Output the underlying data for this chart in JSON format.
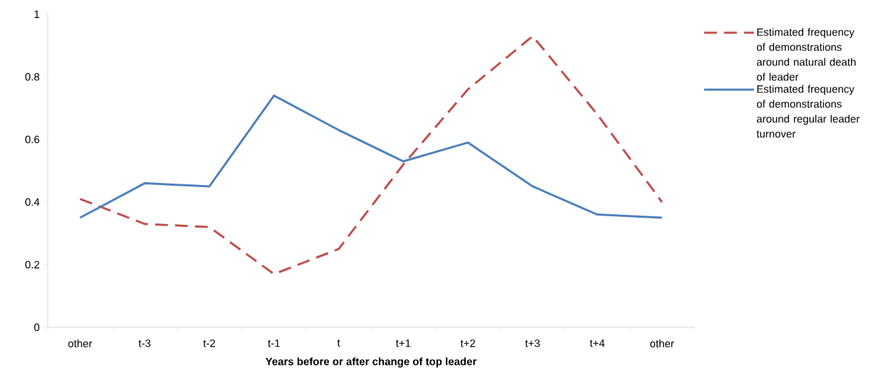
{
  "chart_data": {
    "type": "line",
    "xlabel": "Years before or after change of top leader",
    "categories": [
      "other",
      "t-3",
      "t-2",
      "t-1",
      "t",
      "t+1",
      "t+2",
      "t+3",
      "t+4",
      "other"
    ],
    "series": [
      {
        "name": "Estimated frequency of demonstrations around natural death of leader",
        "color": "#c0504d",
        "line_style": "dashed",
        "values": [
          0.41,
          0.33,
          0.32,
          0.17,
          0.25,
          0.52,
          0.76,
          0.93,
          0.68,
          0.4
        ]
      },
      {
        "name": "Estimated frequency of demonstrations around regular leader turnover",
        "color": "#4f81bd",
        "line_style": "solid",
        "values": [
          0.35,
          0.46,
          0.45,
          0.74,
          0.63,
          0.53,
          0.59,
          0.45,
          0.36,
          0.35
        ]
      }
    ],
    "ylim": [
      0,
      1
    ],
    "yticks": [
      0,
      0.2,
      0.4,
      0.6,
      0.8,
      1
    ],
    "legend": "right",
    "grid": false,
    "marker": "none"
  }
}
